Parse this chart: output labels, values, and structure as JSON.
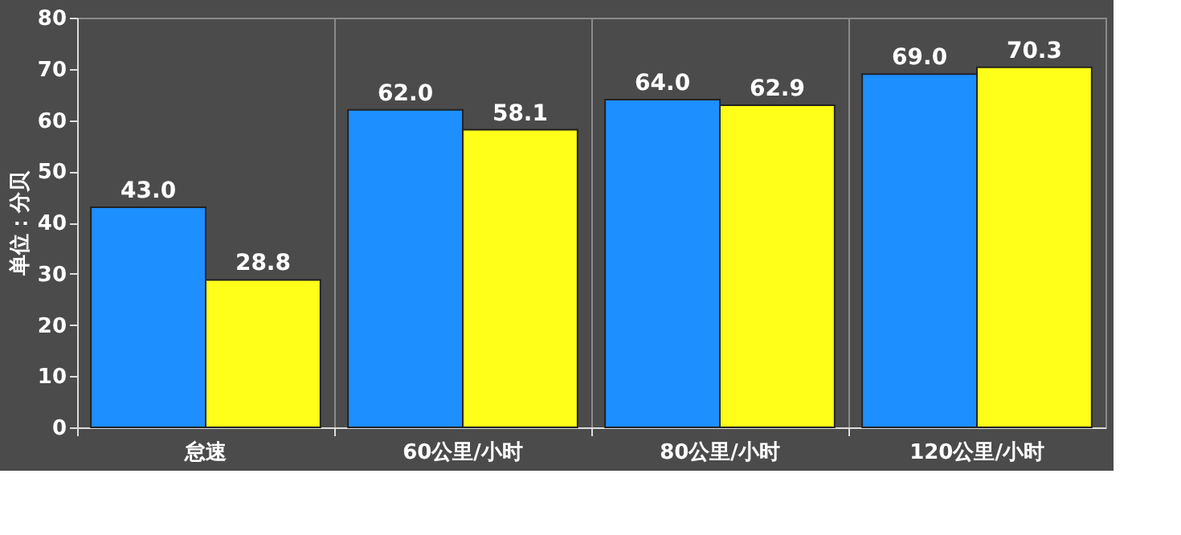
{
  "chart_data": {
    "type": "bar",
    "ylabel": "单位：分贝",
    "categories": [
      "怠速",
      "60公里/小时",
      "80公里/小时",
      "120公里/小时"
    ],
    "series": [
      {
        "color": "#1e8fff",
        "values": [
          43.0,
          62.0,
          64.0,
          69.0
        ]
      },
      {
        "color": "#ffff1a",
        "values": [
          28.8,
          58.1,
          62.9,
          70.3
        ]
      }
    ],
    "value_labels": [
      [
        "43.0",
        "62.0",
        "64.0",
        "69.0"
      ],
      [
        "28.8",
        "58.1",
        "62.9",
        "70.3"
      ]
    ],
    "ylim": [
      0,
      80
    ],
    "yticks": [
      0,
      10,
      20,
      30,
      40,
      50,
      60,
      70,
      80
    ],
    "grid": "x",
    "legend": false
  }
}
